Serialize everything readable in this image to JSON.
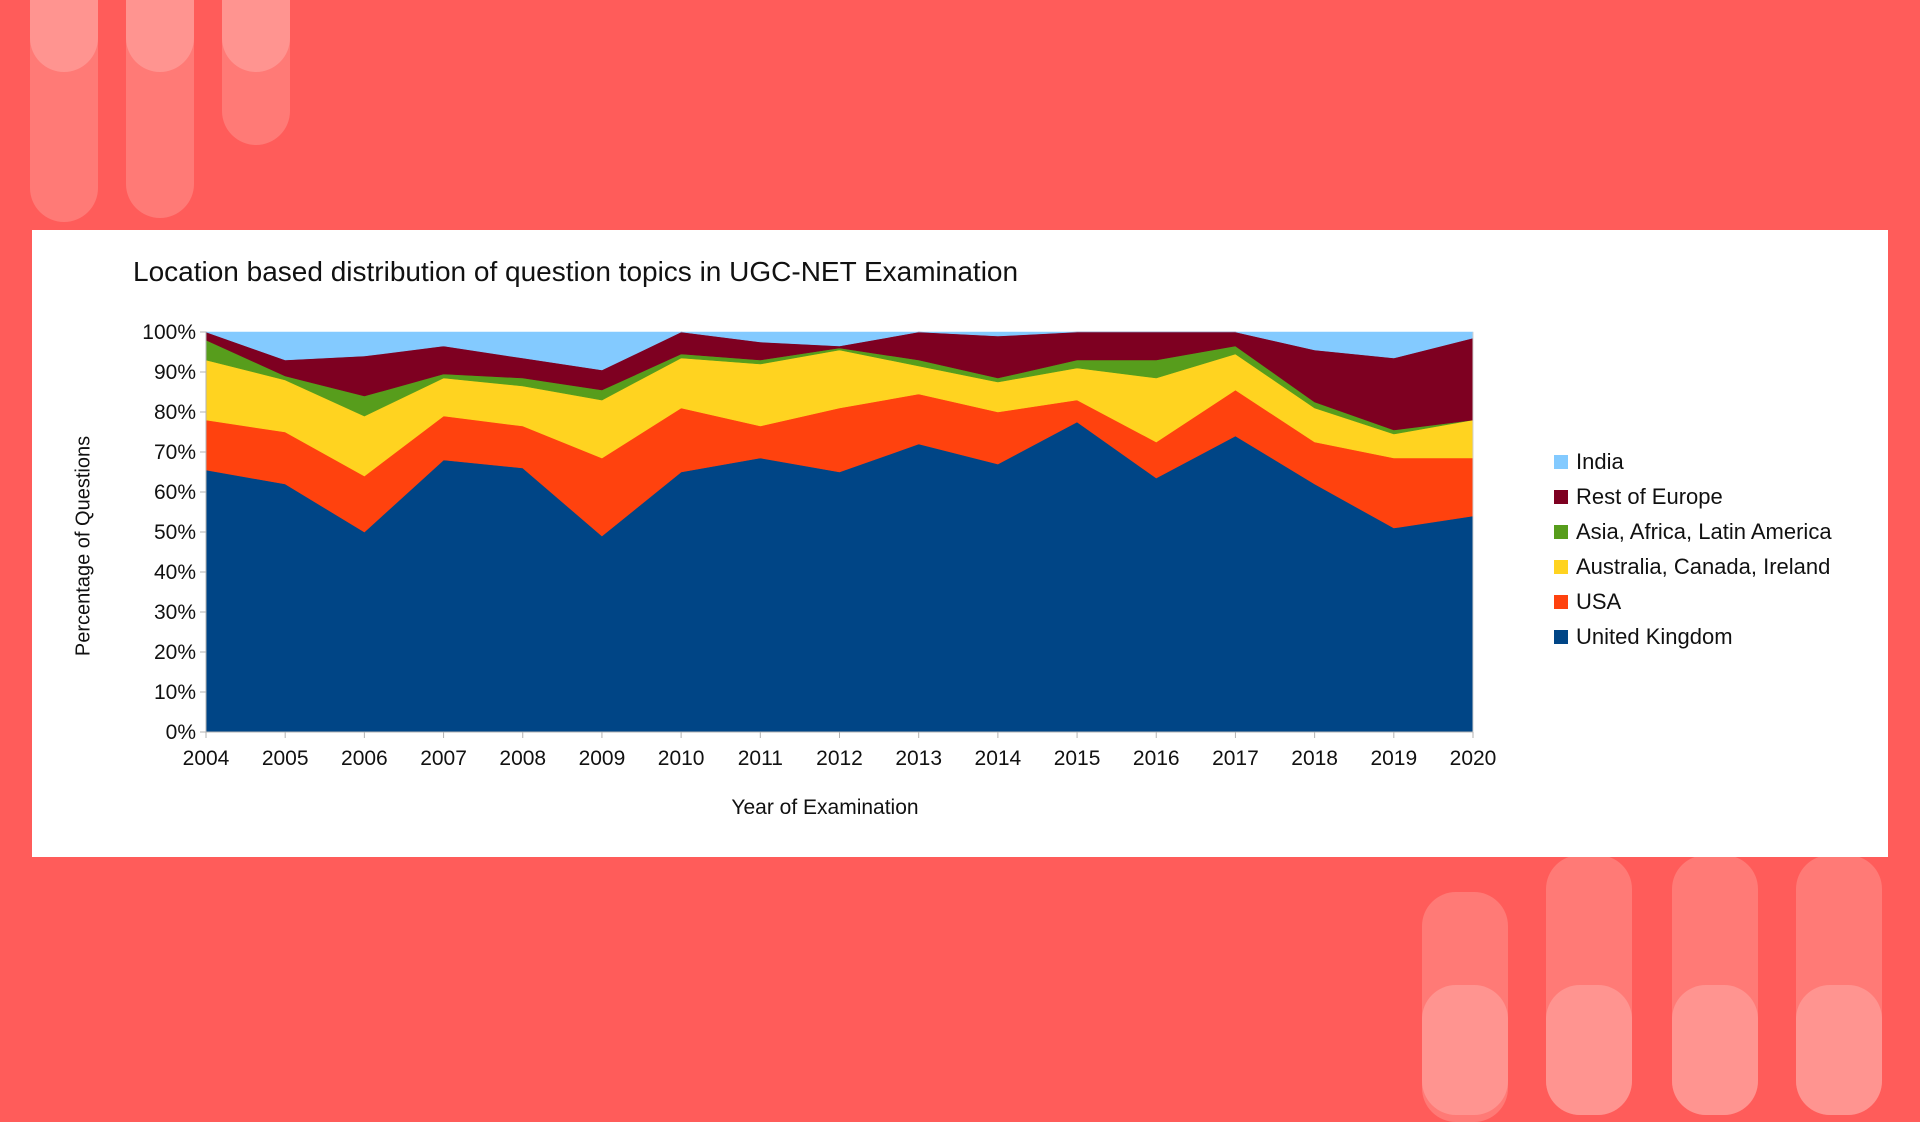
{
  "chart_data": {
    "type": "area",
    "stacked": true,
    "percent": true,
    "title": "Location based distribution of question topics in UGC-NET Examination",
    "xlabel": "Year of Examination",
    "ylabel": "Percentage of Questions",
    "ylim": [
      0,
      100
    ],
    "yticks": [
      "0%",
      "10%",
      "20%",
      "30%",
      "40%",
      "50%",
      "60%",
      "70%",
      "80%",
      "90%",
      "100%"
    ],
    "categories": [
      "2004",
      "2005",
      "2006",
      "2007",
      "2008",
      "2009",
      "2010",
      "2011",
      "2012",
      "2013",
      "2014",
      "2015",
      "2016",
      "2017",
      "2018",
      "2019",
      "2020"
    ],
    "legend_position": "right",
    "series": [
      {
        "name": "United Kingdom",
        "color": "#004586",
        "values": [
          65.5,
          62,
          50,
          68,
          66,
          49,
          65,
          68.5,
          65,
          72,
          67,
          77.5,
          63.5,
          74,
          62,
          51,
          54
        ]
      },
      {
        "name": "USA",
        "color": "#ff420e",
        "values": [
          12.5,
          13,
          14,
          11,
          10.5,
          19.5,
          16,
          8,
          16,
          12.5,
          13,
          5.5,
          9,
          11.5,
          10.5,
          17.5,
          14.5
        ]
      },
      {
        "name": "Australia, Canada, Ireland",
        "color": "#ffd320",
        "values": [
          15,
          13,
          15,
          9.5,
          10,
          14.5,
          12.5,
          15.5,
          14.5,
          7,
          7.5,
          8,
          16,
          9,
          8.5,
          6,
          9.5
        ]
      },
      {
        "name": "Asia, Africa, Latin America",
        "color": "#579d1c",
        "values": [
          5,
          1,
          5,
          1,
          2,
          2.5,
          1,
          1,
          0.5,
          1.5,
          1,
          2,
          4.5,
          2,
          1.5,
          1,
          0
        ]
      },
      {
        "name": "Rest of Europe",
        "color": "#7e0021",
        "values": [
          2,
          4,
          10,
          7,
          5,
          5,
          5.5,
          4.5,
          0.5,
          7,
          10.5,
          7,
          7,
          3.5,
          13,
          18,
          20.5
        ]
      },
      {
        "name": "India",
        "color": "#83caff",
        "values": [
          0,
          7,
          6,
          3.5,
          6.5,
          9.5,
          0,
          2.5,
          3.5,
          0,
          1,
          0,
          0,
          0,
          4.5,
          6.5,
          1.5
        ]
      }
    ],
    "legend_order": [
      "India",
      "Rest of Europe",
      "Asia, Africa, Latin America",
      "Australia, Canada, Ireland",
      "USA",
      "United Kingdom"
    ]
  }
}
